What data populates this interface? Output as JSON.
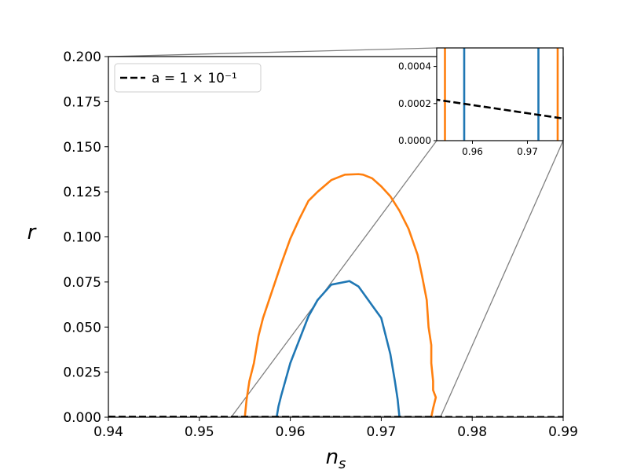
{
  "chart_data": {
    "type": "line",
    "xlabel": "n_s",
    "ylabel": "r",
    "xlim": [
      0.94,
      0.99
    ],
    "ylim": [
      0.0,
      0.2
    ],
    "xticks": [
      "0.94",
      "0.95",
      "0.96",
      "0.97",
      "0.98",
      "0.99"
    ],
    "yticks": [
      "0.000",
      "0.025",
      "0.050",
      "0.075",
      "0.100",
      "0.125",
      "0.150",
      "0.175",
      "0.200"
    ],
    "legend": {
      "placement": "top-left",
      "entries": [
        {
          "label": "a = 1 × 10⁻¹",
          "style": "dashed",
          "color": "#000000"
        }
      ]
    },
    "series": [
      {
        "name": "",
        "color": "#ff7f0e",
        "x": [
          0.955,
          0.9552,
          0.9555,
          0.956,
          0.9565,
          0.957,
          0.958,
          0.959,
          0.96,
          0.961,
          0.962,
          0.963,
          0.9645,
          0.966,
          0.9675,
          0.968,
          0.969,
          0.97,
          0.971,
          0.972,
          0.973,
          0.974,
          0.9745,
          0.975,
          0.9752,
          0.9755,
          0.9755,
          0.9757,
          0.9757,
          0.976,
          0.9757,
          0.9755
        ],
        "y": [
          0.0,
          0.01,
          0.02,
          0.03,
          0.045,
          0.055,
          0.07,
          0.085,
          0.099,
          0.11,
          0.12,
          0.125,
          0.1315,
          0.1345,
          0.1348,
          0.1345,
          0.1325,
          0.128,
          0.1225,
          0.1145,
          0.1045,
          0.09,
          0.078,
          0.065,
          0.05,
          0.04,
          0.03,
          0.02,
          0.015,
          0.011,
          0.005,
          0.0
        ]
      },
      {
        "name": "",
        "color": "#1f77b4",
        "x": [
          0.9585,
          0.9587,
          0.959,
          0.9595,
          0.96,
          0.961,
          0.962,
          0.963,
          0.9645,
          0.9665,
          0.9675,
          0.968,
          0.969,
          0.97,
          0.9705,
          0.971,
          0.9715,
          0.9718,
          0.972
        ],
        "y": [
          0.0,
          0.006,
          0.012,
          0.021,
          0.03,
          0.043,
          0.056,
          0.065,
          0.0735,
          0.0755,
          0.0725,
          0.069,
          0.062,
          0.055,
          0.045,
          0.035,
          0.02,
          0.01,
          0.0
        ]
      },
      {
        "name": "a = 1 × 10⁻¹",
        "color": "#000000",
        "dashed": true,
        "x": [
          0.94,
          0.99
        ],
        "y": [
          0.00028,
          6e-05
        ]
      }
    ],
    "inset": {
      "xlim": [
        0.9535,
        0.9765
      ],
      "ylim": [
        0.0,
        0.0005
      ],
      "xticks": [
        "0.96",
        "0.97"
      ],
      "yticks": [
        "0.0000",
        "0.0002",
        "0.0004"
      ],
      "vlines": [
        {
          "x": 0.955,
          "color": "#ff7f0e"
        },
        {
          "x": 0.9585,
          "color": "#1f77b4"
        },
        {
          "x": 0.972,
          "color": "#1f77b4"
        },
        {
          "x": 0.9755,
          "color": "#ff7f0e"
        }
      ]
    }
  }
}
